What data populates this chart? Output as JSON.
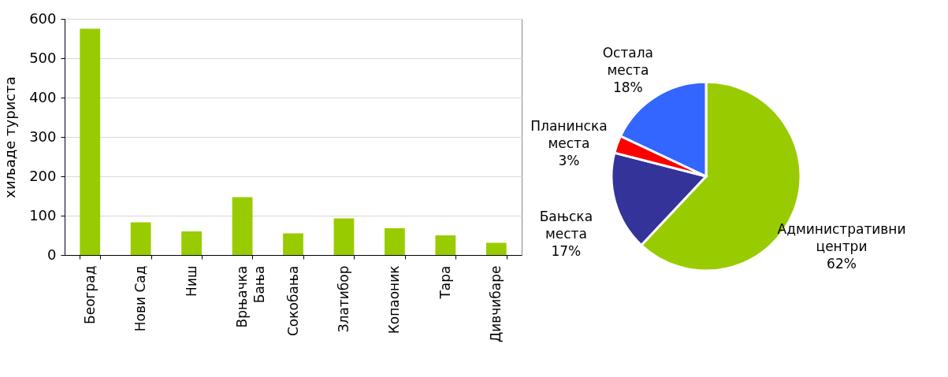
{
  "chart_data": [
    {
      "type": "bar",
      "ylabel": "хиљаде туриста",
      "categories": [
        "Београд",
        "Нови Сад",
        "Ниш",
        "Врњачка Бања",
        "Сокобања",
        "Златибор",
        "Копаоник",
        "Тара",
        "Дивчибаре"
      ],
      "values": [
        575,
        83,
        60,
        147,
        55,
        93,
        68,
        50,
        31
      ],
      "color": "#99cc00",
      "ylim": [
        0,
        600
      ],
      "yticks": [
        0,
        100,
        200,
        300,
        400,
        500,
        600
      ],
      "grid": "y",
      "legend": false
    },
    {
      "type": "pie",
      "categories": [
        "Административни центри",
        "Бањска места",
        "Планинска места",
        "Остала места"
      ],
      "values": [
        62,
        17,
        3,
        18
      ],
      "value_labels": [
        "62%",
        "17%",
        "3%",
        "18%"
      ],
      "colors": [
        "#99cc00",
        "#333399",
        "#ff0000",
        "#3366ff"
      ],
      "legend": false
    }
  ]
}
